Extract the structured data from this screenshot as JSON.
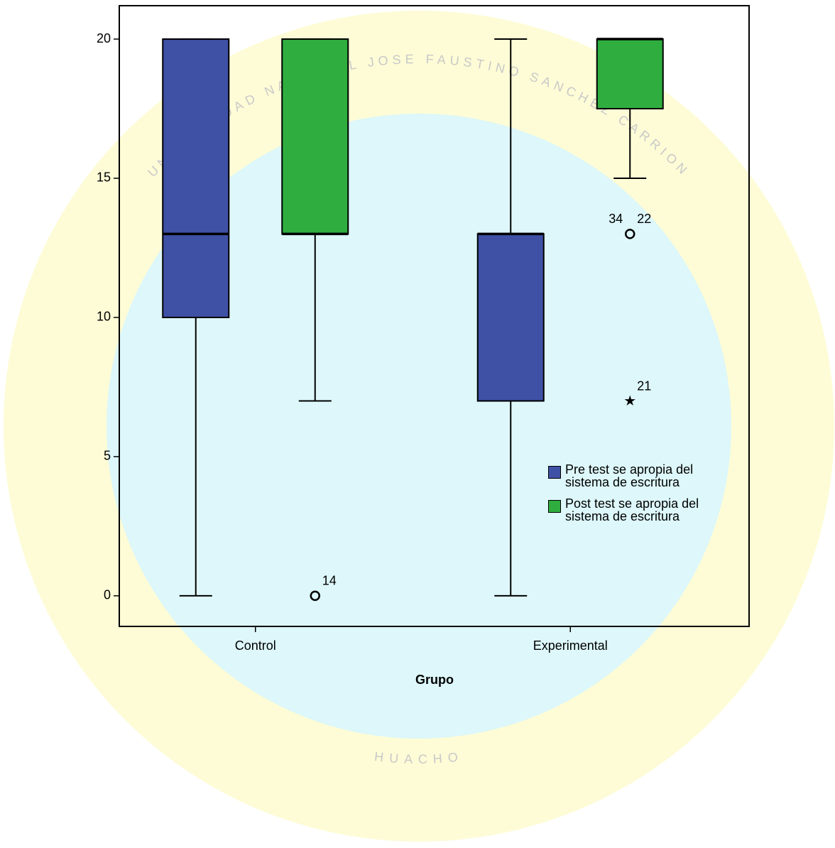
{
  "watermark": {
    "arc_text": "UNIVERSIDAD NACIONAL JOSE FAUSTINO SANCHEZ CARRION",
    "bottom_text": "HUACHO"
  },
  "chart_data": {
    "type": "boxplot",
    "x_label": "Grupo",
    "categories": [
      "Control",
      "Experimental"
    ],
    "ylim": [
      -1.1,
      21.2
    ],
    "yticks": [
      0,
      5,
      10,
      15,
      20
    ],
    "legend": "bottom-right",
    "series": [
      {
        "name": "Pre test se apropia del sistema de escritura",
        "color": "#3f51a5",
        "values": [
          {
            "min": 0,
            "q1": 10,
            "median": 13,
            "q3": 20,
            "max": 20
          },
          {
            "min": 0,
            "q1": 7,
            "median": 13,
            "q3": 13,
            "max": 20
          }
        ],
        "outliers": [
          [],
          []
        ]
      },
      {
        "name": "Post test se apropia del sistema de escritura",
        "color": "#2fae3f",
        "values": [
          {
            "min": 7,
            "q1": 13,
            "median": 13,
            "q3": 20,
            "max": 20
          },
          {
            "min": 15,
            "q1": 17.5,
            "median": 20,
            "q3": 20,
            "max": 20
          }
        ],
        "outliers": [
          [
            {
              "value": 0,
              "label": "14",
              "marker": "circle"
            }
          ],
          [
            {
              "value": 13,
              "label": "34 22",
              "marker": "circle"
            },
            {
              "value": 7,
              "label": "21",
              "marker": "star"
            }
          ]
        ]
      }
    ]
  }
}
